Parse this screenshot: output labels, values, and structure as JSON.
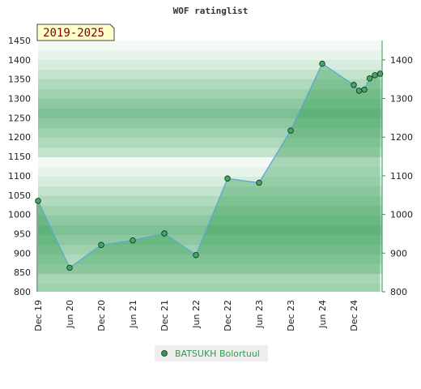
{
  "chart_data": {
    "type": "area",
    "title": "WOF ratinglist",
    "badge": "2019-2025",
    "xlabel": "",
    "ylabel": "",
    "ylim": [
      800,
      1450
    ],
    "y_right_ticks": [
      800,
      900,
      1000,
      1100,
      1200,
      1300,
      1400
    ],
    "y_left_ticks": [
      800,
      850,
      900,
      950,
      1000,
      1050,
      1100,
      1150,
      1200,
      1250,
      1300,
      1350,
      1400,
      1450
    ],
    "x_ticks": [
      "Dec 19",
      "Jun 20",
      "Dec 20",
      "Jun 21",
      "Dec 21",
      "Jun 22",
      "Dec 22",
      "Jun 23",
      "Dec 23",
      "Jun 24",
      "Dec 24"
    ],
    "grid": true,
    "legend": "bottom",
    "series": [
      {
        "name": "BATSUKH Bolortuul",
        "color": "#2e9b4f",
        "x": [
          "2019-12",
          "2020-06",
          "2020-12",
          "2021-06",
          "2021-12",
          "2022-06",
          "2022-12",
          "2023-06",
          "2023-12",
          "2024-06",
          "2024-12",
          "2025-01",
          "2025-02",
          "2025-03",
          "2025-04",
          "2025-05"
        ],
        "values": [
          1035,
          862,
          921,
          933,
          951,
          895,
          1093,
          1082,
          1217,
          1390,
          1335,
          1320,
          1323,
          1352,
          1360,
          1364
        ]
      }
    ]
  }
}
